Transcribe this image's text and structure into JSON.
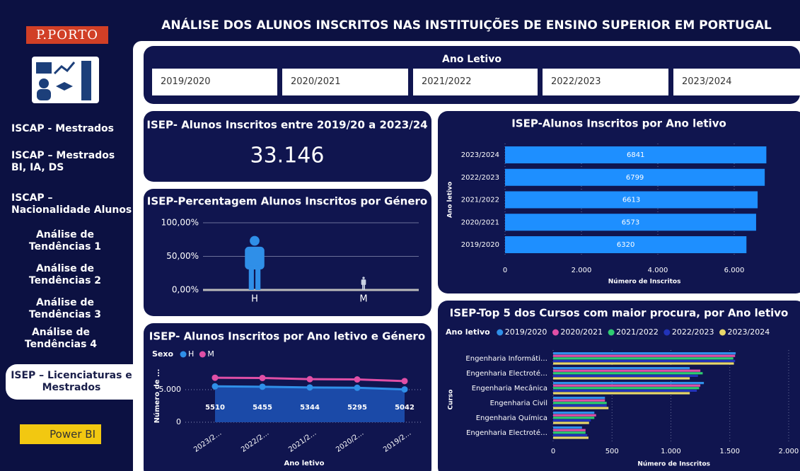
{
  "header": {
    "logo": "P.PORTO",
    "title": "ANÁLISE DOS ALUNOS INSCRITOS NAS INSTITUIÇÕES DE ENSINO SUPERIOR EM PORTUGAL"
  },
  "sidebar": {
    "items": [
      "ISCAP - Mestrados",
      "ISCAP – Mestrados BI, IA, DS",
      "ISCAP – Nacionalidade Alunos",
      "Análise de Tendências 1",
      "Análise de Tendências 2",
      "Análise de Tendências 3",
      "Análise de Tendências 4"
    ],
    "selected": "ISEP – Licenciaturas e Mestrados",
    "powerbi": "Power BI"
  },
  "filter": {
    "title": "Ano Letivo",
    "options": [
      "2019/2020",
      "2020/2021",
      "2021/2022",
      "2022/2023",
      "2023/2024"
    ]
  },
  "kpi": {
    "title": "ISEP- Alunos Inscritos entre 2019/20 a 2023/24",
    "value": "33.146"
  },
  "chart_data": [
    {
      "type": "pictograph",
      "title": "ISEP-Percentagem Alunos Inscritos por Género",
      "categories": [
        "H",
        "M"
      ],
      "values": [
        80.39,
        19.61
      ],
      "colors": [
        "#2f8fe8",
        "#c9d1e2"
      ],
      "ylim": [
        0,
        100
      ],
      "yticks": [
        {
          "value": 0,
          "label": "0,00%"
        },
        {
          "value": 50,
          "label": "50,00%"
        },
        {
          "value": 100,
          "label": "100,00%"
        }
      ],
      "grid": true
    },
    {
      "type": "hbar",
      "title": "ISEP-Alunos Inscritos por Ano letivo",
      "categories": [
        "2023/2024",
        "2022/2023",
        "2021/2022",
        "2020/2021",
        "2019/2020"
      ],
      "values": [
        6841,
        6799,
        6613,
        6573,
        6320
      ],
      "color": "#1e8fff",
      "xlim": [
        0,
        7300
      ],
      "xticks": [
        0,
        {
          "value": 2000,
          "label": "2.000"
        },
        {
          "value": 4000,
          "label": "4.000"
        },
        {
          "value": 6000,
          "label": "6.000"
        }
      ],
      "xlabel": "Número de Inscritos",
      "ylabel": "Ano letivo",
      "grid": true
    },
    {
      "type": "stacked_area",
      "title": "ISEP- Alunos Inscritos por Ano letivo e Género",
      "legend_title": "Sexo",
      "categories": [
        "2023/2…",
        "2022/2…",
        "2021/2…",
        "2020/2…",
        "2019/2…"
      ],
      "series": [
        {
          "name": "H",
          "color": "#2f8fe8",
          "values": [
            5510,
            5455,
            5344,
            5295,
            5042
          ]
        },
        {
          "name": "M",
          "color": "#e04fa6",
          "values": [
            1331,
            1344,
            1269,
            1278,
            1278
          ]
        }
      ],
      "ylim": [
        0,
        8000
      ],
      "yticks": [
        0,
        {
          "value": 5000,
          "label": "5.000"
        }
      ],
      "xlabel": "Ano letivo",
      "ylabel": "Número de ...",
      "grid": true
    },
    {
      "type": "grouped_hbar",
      "title": "ISEP-Top 5 dos Cursos com maior procura, por Ano letivo",
      "legend_title": "Ano letivo",
      "categories": [
        "Engenharia Informáti…",
        "Engenharia Electroté…",
        "Engenharia Mecânica",
        "Engenharia Civil",
        "Engenharia Química",
        "Engenharia Electroté…"
      ],
      "series": [
        {
          "name": "2019/2020",
          "color": "#2f8fe8",
          "values": [
            1550,
            1160,
            1280,
            440,
            350,
            245
          ]
        },
        {
          "name": "2020/2021",
          "color": "#e04fa6",
          "values": [
            1545,
            1250,
            1250,
            440,
            365,
            275
          ]
        },
        {
          "name": "2021/2022",
          "color": "#2ecc71",
          "values": [
            1530,
            1270,
            1240,
            455,
            350,
            275
          ]
        },
        {
          "name": "2022/2023",
          "color": "#2233b8",
          "values": [
            1545,
            1230,
            1220,
            455,
            320,
            290
          ]
        },
        {
          "name": "2023/2024",
          "color": "#e8d86a",
          "values": [
            1535,
            1160,
            1160,
            470,
            305,
            300
          ]
        }
      ],
      "xlim": [
        0,
        2050
      ],
      "xticks": [
        0,
        500,
        {
          "value": 1000,
          "label": "1.000"
        },
        {
          "value": 1500,
          "label": "1.500"
        },
        {
          "value": 2000,
          "label": "2.000"
        }
      ],
      "xlabel": "Número de Inscritos",
      "ylabel": "Curso",
      "grid": true
    }
  ]
}
